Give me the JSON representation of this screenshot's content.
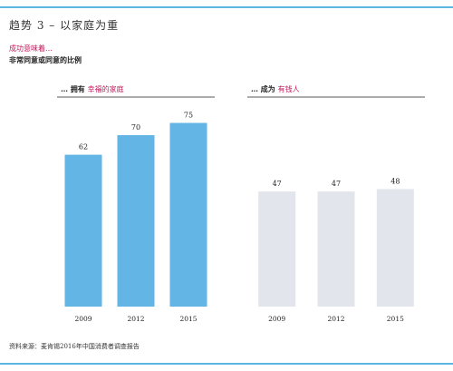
{
  "header": {
    "title": "趋势 3 – 以家庭为重",
    "subtitle": "成功意味着…",
    "subtitle2": "非常同意或同意的比例"
  },
  "footer": {
    "source": "资料来源：麦肯锡2016年中国消费者调查报告"
  },
  "colors": {
    "rule": "#5bb5e0",
    "panel1_bar": "#62b5e5",
    "panel2_bar": "#e3e5ec",
    "highlight": "#c2185b",
    "panel_rule": "#5a5a5a"
  },
  "chart_data": [
    {
      "type": "bar",
      "title_prefix": "… 拥有 ",
      "title_highlight": "幸福的家庭",
      "categories": [
        "2009",
        "2012",
        "2015"
      ],
      "values": [
        62,
        70,
        75
      ]
    },
    {
      "type": "bar",
      "title_prefix": "… 成为 ",
      "title_highlight": "有钱人",
      "categories": [
        "2009",
        "2012",
        "2015"
      ],
      "values": [
        47,
        47,
        48
      ]
    }
  ]
}
